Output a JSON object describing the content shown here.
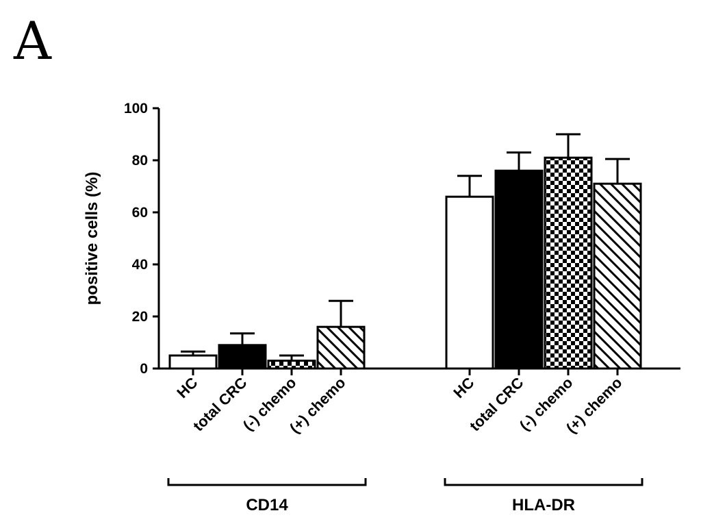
{
  "panel_label": "A",
  "chart_data": {
    "type": "bar",
    "ylabel": "positive cells (%)",
    "ylim": [
      0,
      100
    ],
    "yticks": [
      0,
      20,
      40,
      60,
      80,
      100
    ],
    "grid": false,
    "groups": [
      {
        "name": "CD14",
        "bars": [
          {
            "label": "HC",
            "value": 5,
            "error": 1.5,
            "pattern": "open"
          },
          {
            "label": "total CRC",
            "value": 9,
            "error": 4.5,
            "pattern": "solid"
          },
          {
            "label": "(-) chemo",
            "value": 3,
            "error": 2,
            "pattern": "checker"
          },
          {
            "label": "(+) chemo",
            "value": 16,
            "error": 10,
            "pattern": "hatch"
          }
        ]
      },
      {
        "name": "HLA-DR",
        "bars": [
          {
            "label": "HC",
            "value": 66,
            "error": 8,
            "pattern": "open"
          },
          {
            "label": "total CRC",
            "value": 76,
            "error": 7,
            "pattern": "solid"
          },
          {
            "label": "(-) chemo",
            "value": 81,
            "error": 9,
            "pattern": "checker"
          },
          {
            "label": "(+) chemo",
            "value": 71,
            "error": 9.5,
            "pattern": "hatch"
          }
        ]
      }
    ]
  }
}
